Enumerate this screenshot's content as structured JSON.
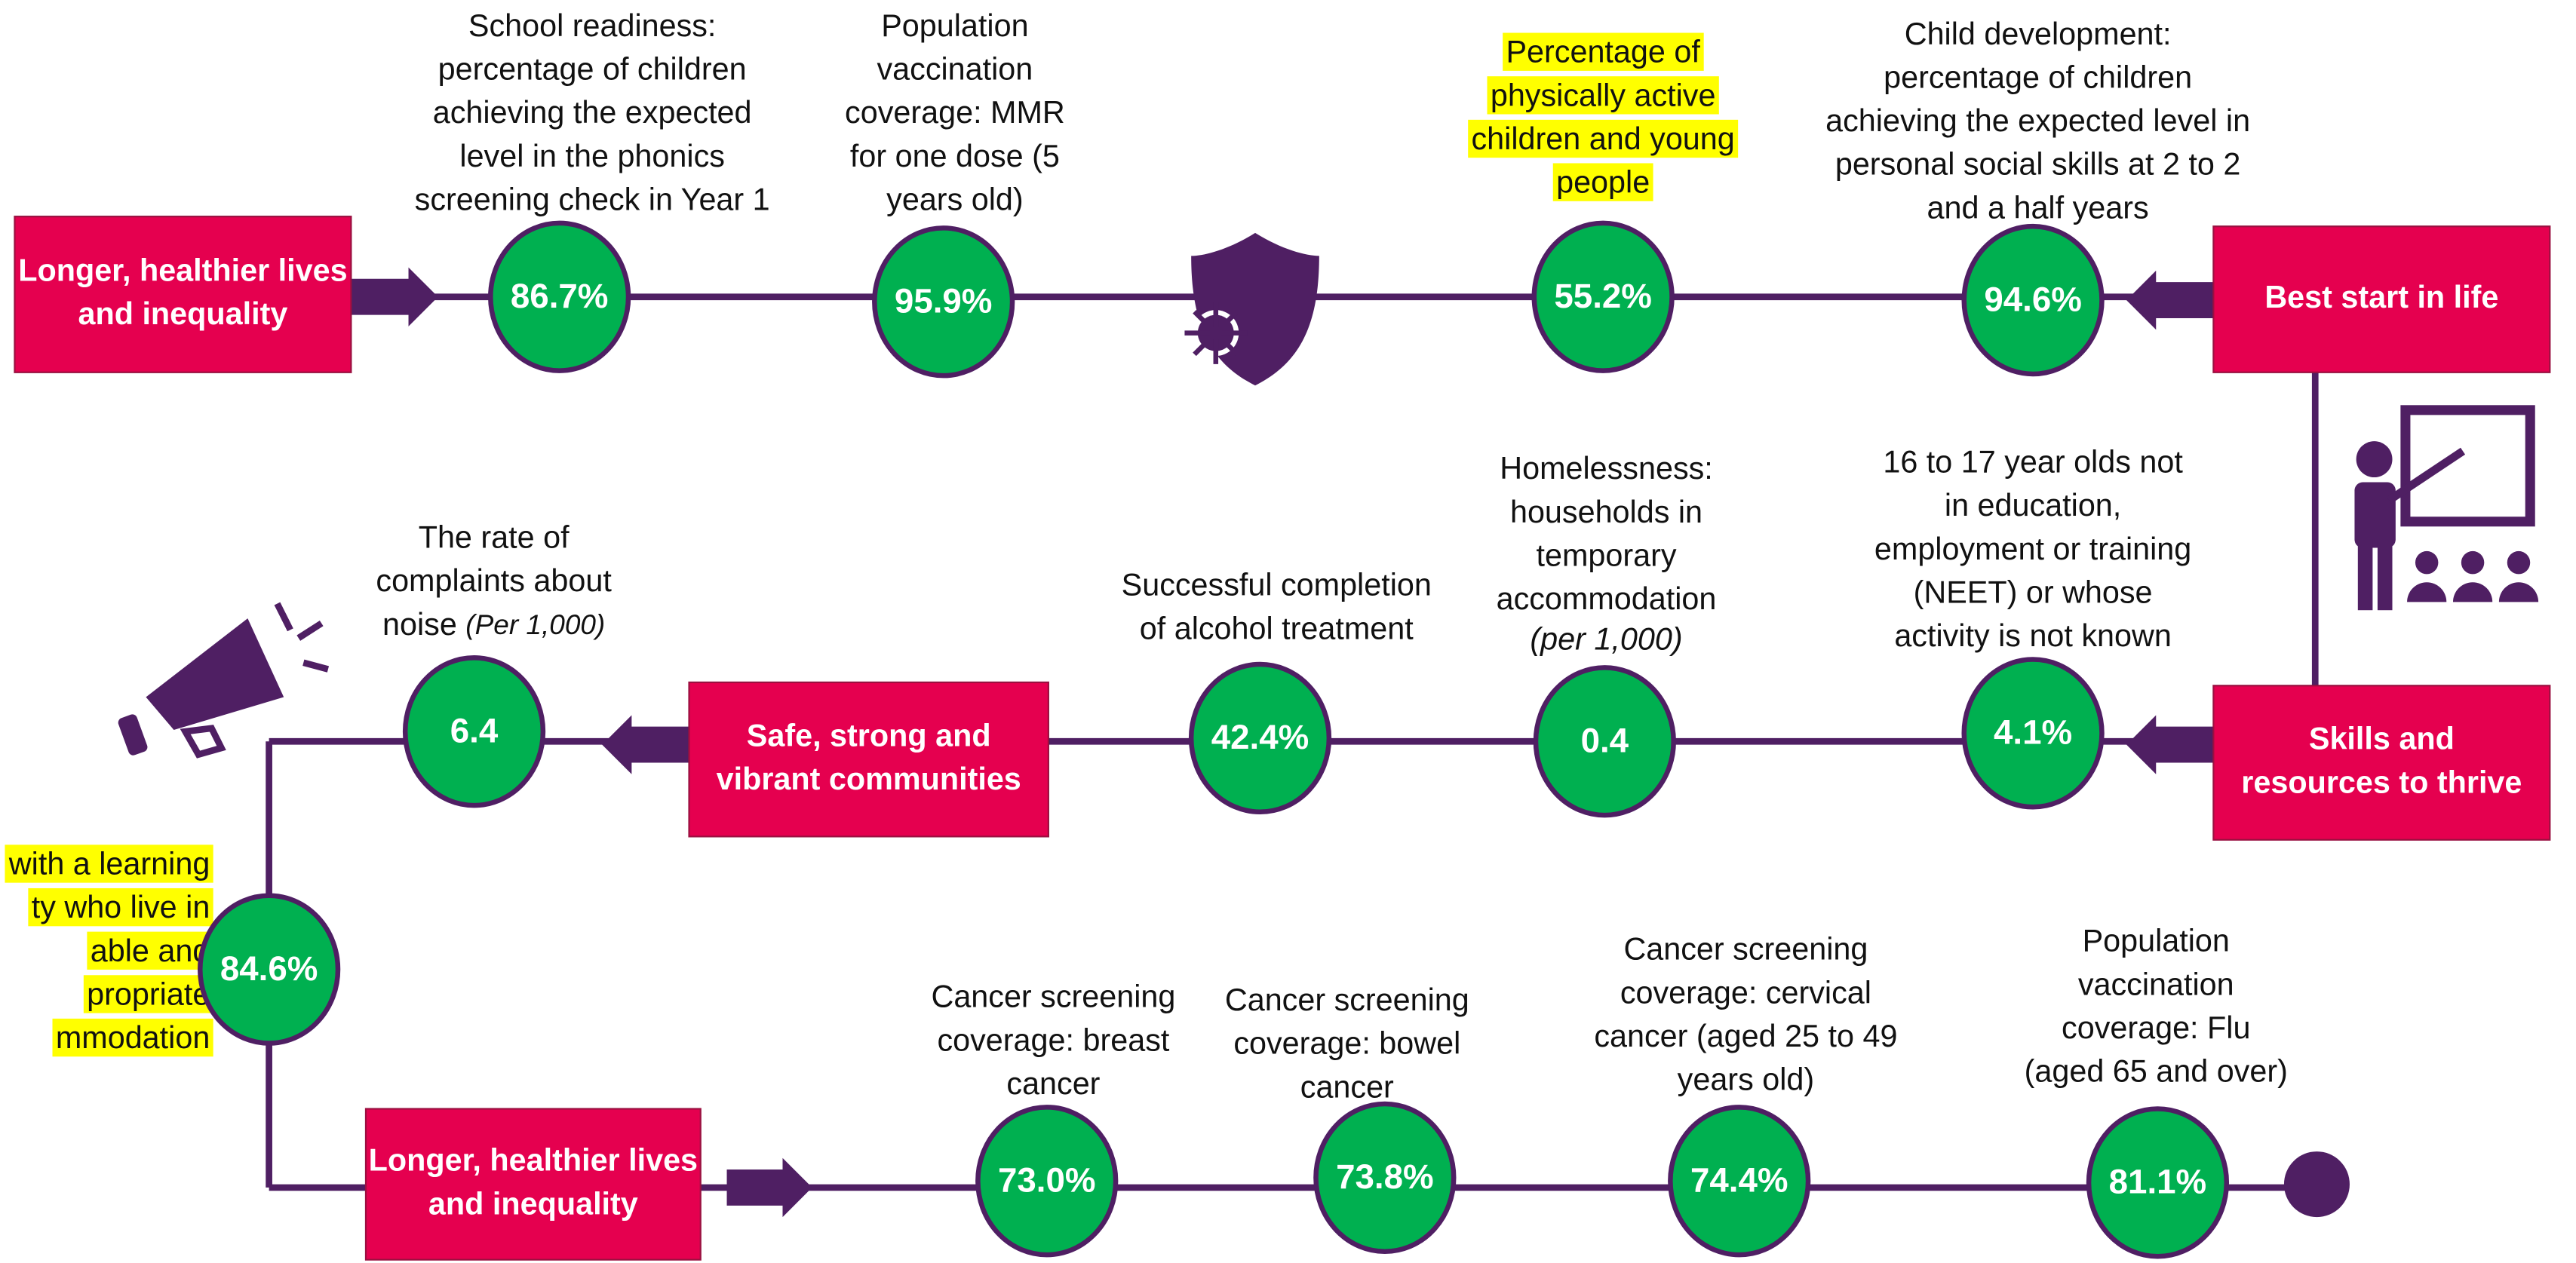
{
  "sections": [
    {
      "lines": [
        "Longer, healthier lives",
        "and inequality"
      ]
    },
    {
      "lines": [
        "Best start in life"
      ]
    },
    {
      "lines": [
        "Skills and",
        "resources to thrive"
      ]
    },
    {
      "lines": [
        "Safe, strong and",
        "vibrant communities"
      ]
    },
    {
      "lines": [
        "Longer, healthier lives",
        "and inequality"
      ]
    }
  ],
  "indicators": [
    {
      "lines": [
        "School readiness:",
        "percentage of children",
        "achieving the expected",
        "level in the phonics",
        "screening check in Year 1"
      ],
      "value": "86.7%"
    },
    {
      "lines": [
        "Population",
        "vaccination",
        "coverage: MMR",
        "for one dose (5",
        "years old)"
      ],
      "value": "95.9%"
    },
    {
      "lines": [
        "Percentage of",
        "physically active",
        "children and young",
        "people"
      ],
      "value": "55.2%",
      "highlight": true
    },
    {
      "lines": [
        "Child development:",
        "percentage of children",
        "achieving the expected level in",
        "personal social skills at 2 to 2",
        "and a half years"
      ],
      "value": "94.6%"
    },
    {
      "lines": [
        "16 to 17 year olds not",
        "in education,",
        "employment or training",
        "(NEET) or whose",
        "activity is not known"
      ],
      "value": "4.1%"
    },
    {
      "lines": [
        "Homelessness:",
        "households in",
        "temporary",
        "accommodation"
      ],
      "note": "(per 1,000)",
      "value": "0.4"
    },
    {
      "lines": [
        "Successful completion",
        "of alcohol treatment"
      ],
      "value": "42.4%"
    },
    {
      "lines": [
        "The rate of",
        "complaints about",
        "noise"
      ],
      "note": "(Per 1,000)",
      "value": "6.4"
    },
    {
      "lines": [
        "with a learning",
        "ty who live in",
        "able and",
        "propriate",
        "mmodation"
      ],
      "value": "84.6%",
      "highlight": true
    },
    {
      "lines": [
        "Cancer screening",
        "coverage: breast",
        "cancer"
      ],
      "value": "73.0%"
    },
    {
      "lines": [
        "Cancer screening",
        "coverage: bowel",
        "cancer"
      ],
      "value": "73.8%"
    },
    {
      "lines": [
        "Cancer screening",
        "coverage: cervical",
        "cancer (aged 25 to 49",
        "years old)"
      ],
      "value": "74.4%"
    },
    {
      "lines": [
        "Population",
        "vaccination",
        "coverage: Flu",
        "(aged 65 and over)"
      ],
      "value": "81.1%"
    }
  ]
}
